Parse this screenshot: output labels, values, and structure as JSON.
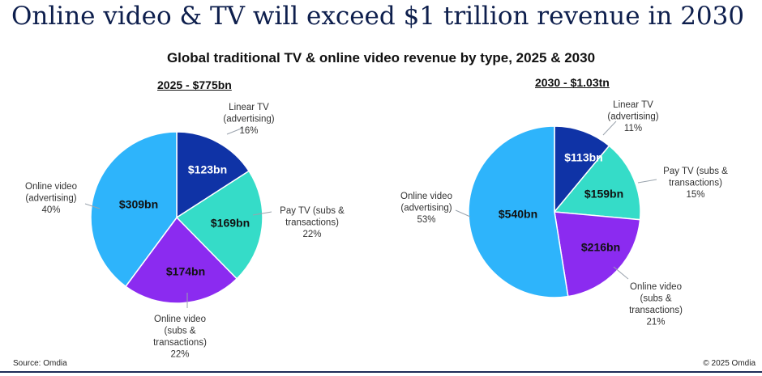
{
  "headline": "Online video & TV will exceed $1 trillion revenue in 2030",
  "footer": {
    "source": "Source: Omdia",
    "copyright": "© 2025 Omdia"
  },
  "chart_data": {
    "type": "pie",
    "title": "Global traditional TV & online video revenue by type, 2025 & 2030",
    "pies": [
      {
        "title": "2025 - $775bn",
        "slices": [
          {
            "category": "Linear TV (advertising)",
            "label_lines": [
              "Linear TV",
              "(advertising)"
            ],
            "value": 123,
            "value_label": "$123bn",
            "percent": "16%",
            "color": "#0f33a6"
          },
          {
            "category": "Pay TV (subs & transactions)",
            "label_lines": [
              "Pay TV (subs &",
              "transactions)"
            ],
            "value": 169,
            "value_label": "$169bn",
            "percent": "22%",
            "color": "#35dcc8"
          },
          {
            "category": "Online video (subs & transactions)",
            "label_lines": [
              "Online video",
              "(subs &",
              "transactions)"
            ],
            "value": 174,
            "value_label": "$174bn",
            "percent": "22%",
            "color": "#8b2bf0"
          },
          {
            "category": "Online video (advertising)",
            "label_lines": [
              "Online video",
              "(advertising)"
            ],
            "value": 309,
            "value_label": "$309bn",
            "percent": "40%",
            "color": "#2eb4fb"
          }
        ]
      },
      {
        "title": "2030 - $1.03tn",
        "slices": [
          {
            "category": "Linear TV (advertising)",
            "label_lines": [
              "Linear TV",
              "(advertising)"
            ],
            "value": 113,
            "value_label": "$113bn",
            "percent": "11%",
            "color": "#0f33a6"
          },
          {
            "category": "Pay TV (subs & transactions)",
            "label_lines": [
              "Pay TV (subs &",
              "transactions)"
            ],
            "value": 159,
            "value_label": "$159bn",
            "percent": "15%",
            "color": "#35dcc8"
          },
          {
            "category": "Online video (subs & transactions)",
            "label_lines": [
              "Online video",
              "(subs &",
              "transactions)"
            ],
            "value": 216,
            "value_label": "$216bn",
            "percent": "21%",
            "color": "#8b2bf0"
          },
          {
            "category": "Online video (advertising)",
            "label_lines": [
              "Online video",
              "(advertising)"
            ],
            "value": 540,
            "value_label": "$540bn",
            "percent": "53%",
            "color": "#2eb4fb"
          }
        ]
      }
    ]
  }
}
